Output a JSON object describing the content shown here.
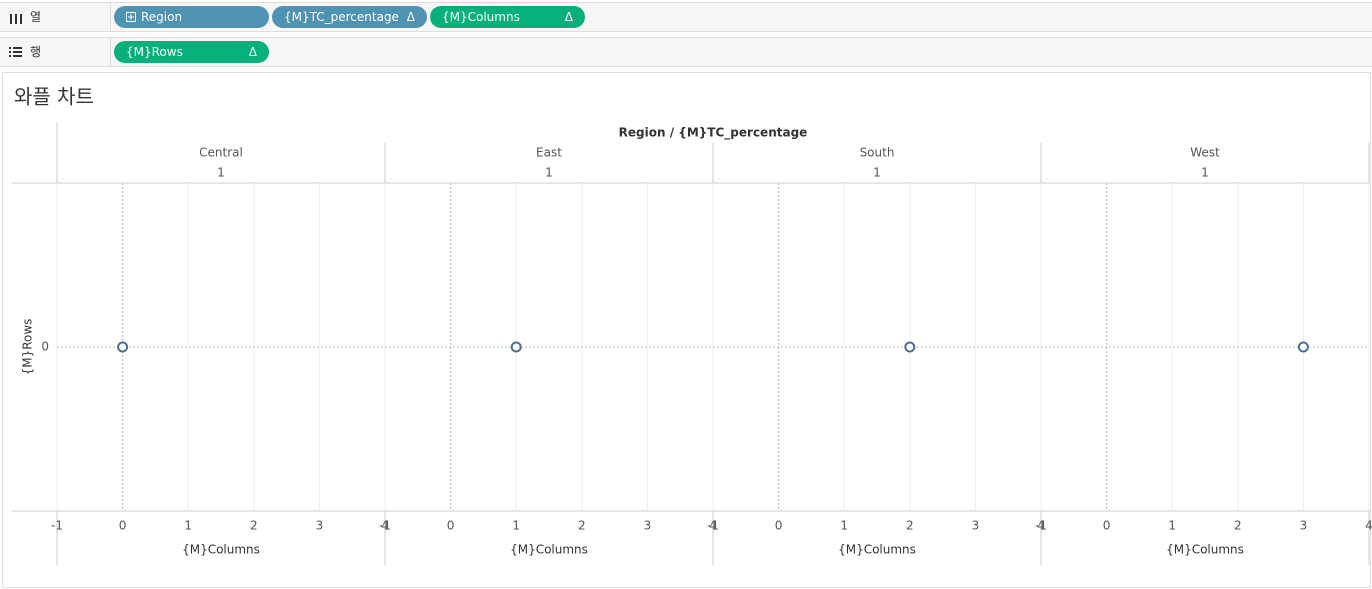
{
  "shelves": {
    "columns": {
      "label": "열",
      "pills": [
        {
          "text": "Region"
        },
        {
          "text": "{M}TC_percentage",
          "mark": "Δ"
        },
        {
          "text": "{M}Columns",
          "mark": "Δ"
        }
      ]
    },
    "rows": {
      "label": "행",
      "pills": [
        {
          "text": "{M}Rows",
          "mark": "Δ"
        }
      ]
    }
  },
  "sheet": {
    "title": "와플 차트"
  },
  "chart_data": {
    "type": "scatter",
    "header_title": "Region / {M}TC_percentage",
    "categories": [
      "Central",
      "East",
      "South",
      "West"
    ],
    "category_values": [
      1,
      1,
      1,
      1
    ],
    "x": [
      0,
      1,
      2,
      3
    ],
    "values": [
      0,
      0,
      0,
      0
    ],
    "xlim": [
      -1,
      4
    ],
    "xticks": [
      -1,
      0,
      1,
      2,
      3,
      4
    ],
    "ylim": [
      -1,
      1
    ],
    "yticks": [
      0
    ],
    "x_label": "{M}Columns",
    "y_label": "{M}Rows",
    "color": "#4e6f91",
    "grid": true
  }
}
